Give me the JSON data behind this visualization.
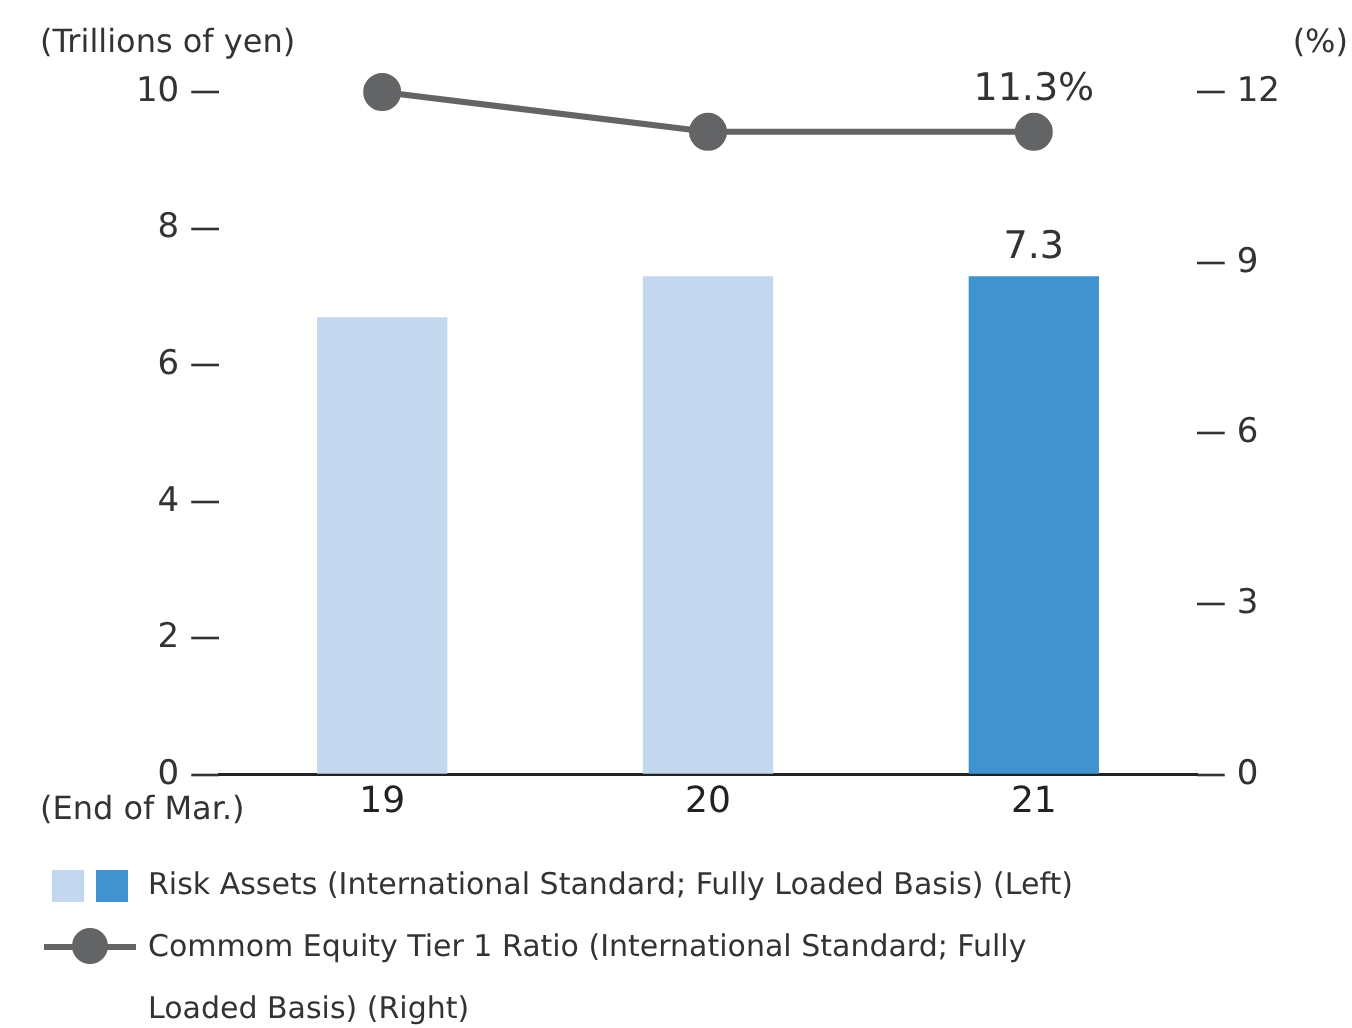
{
  "chart_data": {
    "type": "bar",
    "ylabel": "(Trillions of yen)",
    "y2label": "(%)",
    "xlabel": "(End of Mar.)",
    "categories": [
      "19",
      "20",
      "21"
    ],
    "series": [
      {
        "name": "Risk Assets (International Standard; Fully Loaded Basis) (Left)",
        "colors": [
          "#c3d7ee",
          "#c3d7ee",
          "#4193d0"
        ],
        "values": [
          6.7,
          7.3,
          7.3
        ],
        "value_labels": [
          null,
          null,
          "7.3"
        ]
      },
      {
        "name": "Commom Equity Tier 1 Ratio (International Standard; Fully Loaded Basis) (Right)",
        "type": "line",
        "axis": "y2",
        "color": "#636466",
        "marker": "circle",
        "values": [
          12,
          11.3,
          11.3
        ],
        "value_labels": [
          null,
          null,
          "11.3%"
        ]
      }
    ],
    "ylim": [
      0,
      10
    ],
    "yticks": [
      0,
      2,
      4,
      6,
      8,
      10
    ],
    "y2lim": [
      0,
      12
    ],
    "y2ticks": [
      0,
      3,
      6,
      9,
      12
    ],
    "grid": false,
    "legend": "bottom"
  }
}
